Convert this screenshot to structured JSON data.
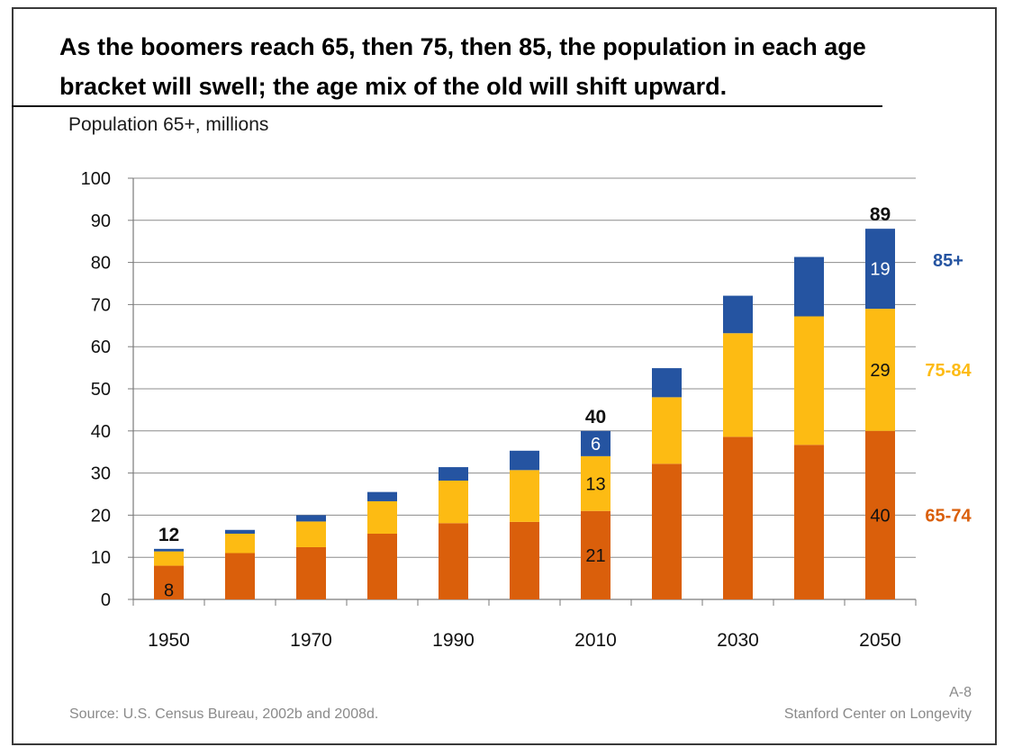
{
  "title": "As the boomers reach 65, then 75, then 85, the population in each age bracket will swell; the age mix of the old will shift upward.",
  "subtitle": "Population 65+, millions",
  "footer": {
    "source": "Source: U.S. Census Bureau, 2002b and 2008d.",
    "slide_code": "A-8",
    "organization": "Stanford Center on Longevity"
  },
  "chart_data": {
    "type": "bar",
    "stacked": true,
    "title": "As the boomers reach 65, then 75, then 85, the population in each age bracket will swell; the age mix of the old will shift upward.",
    "ylabel": "Population 65+, millions",
    "xlabel": "",
    "categories": [
      "1950",
      "1960",
      "1970",
      "1980",
      "1990",
      "2000",
      "2010",
      "2020",
      "2030",
      "2040",
      "2050"
    ],
    "x_tick_labels": [
      "1950",
      "",
      "1970",
      "",
      "1990",
      "",
      "2010",
      "",
      "2030",
      "",
      "2050"
    ],
    "ylim": [
      0,
      100
    ],
    "y_ticks": [
      0,
      10,
      20,
      30,
      40,
      50,
      60,
      70,
      80,
      90,
      100
    ],
    "grid": true,
    "legend_placement": "right",
    "series": [
      {
        "name": "65-74",
        "color": "#DA5F0B",
        "values": [
          8,
          11,
          12.4,
          15.6,
          18.1,
          18.4,
          21,
          32.2,
          38.6,
          36.7,
          40
        ]
      },
      {
        "name": "75-84",
        "color": "#FDBB13",
        "values": [
          3.4,
          4.6,
          6.1,
          7.7,
          10.1,
          12.3,
          13,
          15.8,
          24.6,
          30.5,
          29
        ]
      },
      {
        "name": "85+",
        "color": "#2554A1",
        "values": [
          0.6,
          0.9,
          1.5,
          2.2,
          3.2,
          4.6,
          6,
          6.9,
          8.9,
          14.1,
          19
        ]
      }
    ],
    "total_labels": [
      {
        "category": "1950",
        "text": "12"
      },
      {
        "category": "2010",
        "text": "40"
      },
      {
        "category": "2050",
        "text": "89"
      }
    ],
    "segment_labels": [
      {
        "category": "1950",
        "series": "65-74",
        "text": "8"
      },
      {
        "category": "2010",
        "series": "65-74",
        "text": "21"
      },
      {
        "category": "2010",
        "series": "75-84",
        "text": "13"
      },
      {
        "category": "2010",
        "series": "85+",
        "text": "6"
      },
      {
        "category": "2050",
        "series": "65-74",
        "text": "40"
      },
      {
        "category": "2050",
        "series": "75-84",
        "text": "29"
      },
      {
        "category": "2050",
        "series": "85+",
        "text": "19"
      }
    ]
  }
}
